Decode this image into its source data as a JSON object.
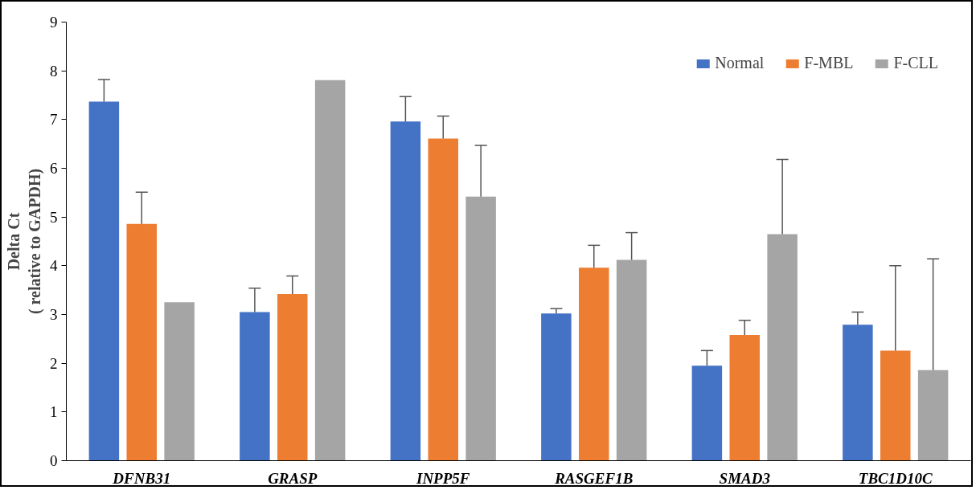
{
  "chart_data": {
    "type": "bar",
    "ylabel": "Delta Ct\n( relative to GAPDH)",
    "categories": [
      "DFNB31",
      "GRASP",
      "INPP5F",
      "RASGEF1B",
      "SMAD3",
      "TBC1D10C"
    ],
    "series": [
      {
        "name": "Normal",
        "color": "#4472c4",
        "values": [
          7.37,
          3.05,
          6.96,
          3.02,
          1.95,
          2.79
        ],
        "errors": [
          [
            7.37,
            7.82
          ],
          [
            3.05,
            3.54
          ],
          [
            6.96,
            7.47
          ],
          [
            3.02,
            3.12
          ],
          [
            1.95,
            2.26
          ],
          [
            2.79,
            3.05
          ]
        ]
      },
      {
        "name": "F-MBL",
        "color": "#ed7d31",
        "values": [
          4.86,
          3.42,
          6.61,
          3.96,
          2.58,
          2.26
        ],
        "errors": [
          [
            4.86,
            5.51
          ],
          [
            3.42,
            3.79
          ],
          [
            6.61,
            7.07
          ],
          [
            3.96,
            4.42
          ],
          [
            2.58,
            2.88
          ],
          [
            2.26,
            4.0
          ]
        ]
      },
      {
        "name": "F-CLL",
        "color": "#a5a5a5",
        "values": [
          3.25,
          7.81,
          5.42,
          4.12,
          4.65,
          1.86
        ],
        "errors": [
          null,
          null,
          [
            5.42,
            6.47
          ],
          [
            4.12,
            4.68
          ],
          [
            4.65,
            6.18
          ],
          [
            1.86,
            4.14
          ]
        ]
      }
    ],
    "ylim": [
      0,
      9
    ],
    "yticks": [
      0,
      1,
      2,
      3,
      4,
      5,
      6,
      7,
      8,
      9
    ],
    "grid": false,
    "legend": "top right"
  }
}
